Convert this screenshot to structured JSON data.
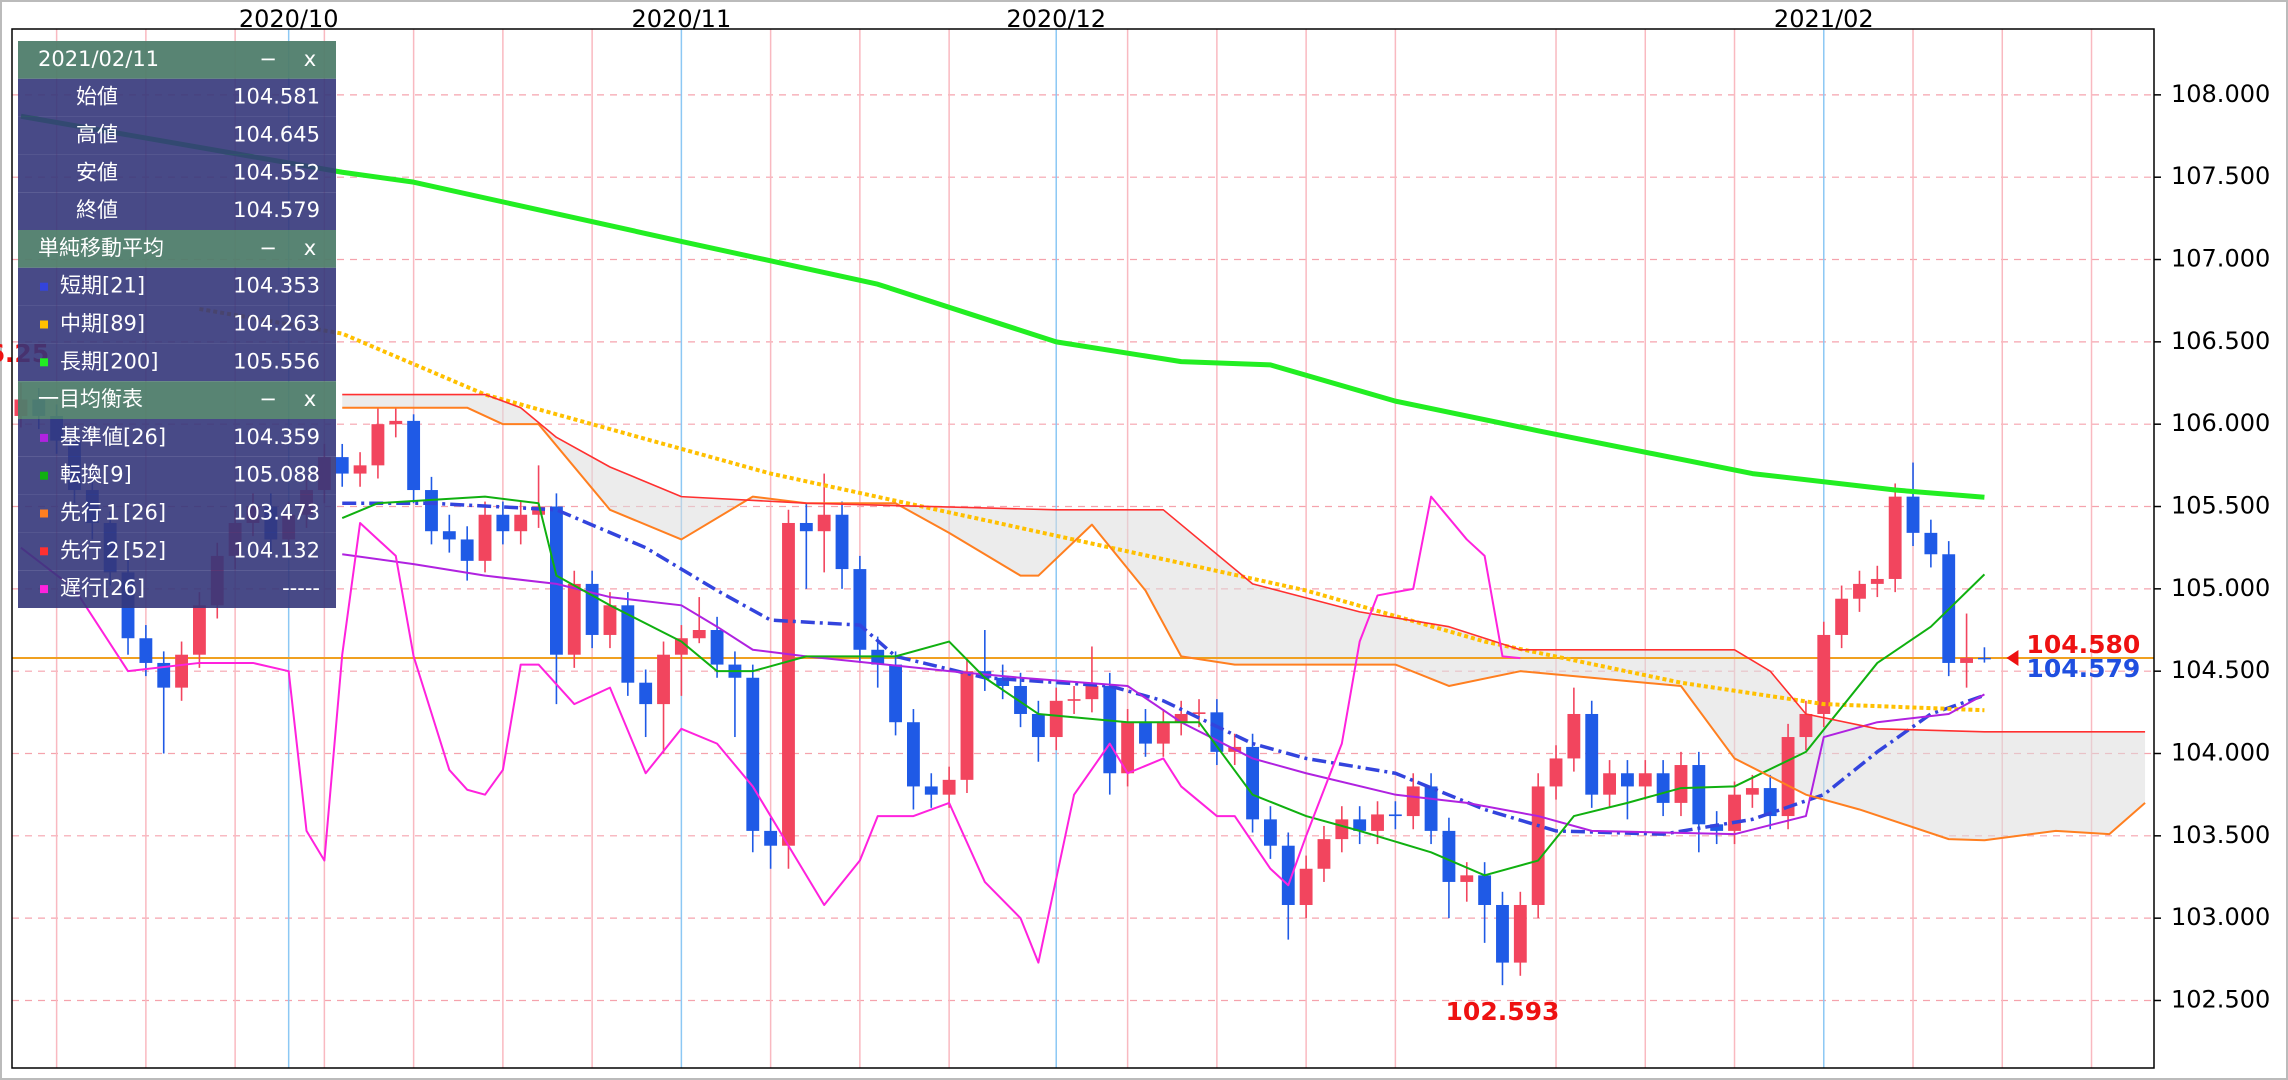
{
  "chart_data": {
    "type": "candlestick",
    "categories": [
      null,
      null,
      null,
      null,
      null,
      null,
      null,
      null,
      null,
      null,
      null,
      null,
      null,
      null,
      null,
      "2020/10",
      null,
      null,
      null,
      null,
      null,
      null,
      null,
      null,
      null,
      null,
      null,
      null,
      null,
      null,
      null,
      null,
      null,
      null,
      null,
      null,
      null,
      "2020/11",
      null,
      null,
      null,
      null,
      null,
      null,
      null,
      null,
      null,
      null,
      null,
      null,
      null,
      null,
      null,
      null,
      null,
      null,
      null,
      null,
      "2020/12",
      null,
      null,
      null,
      null,
      null,
      null,
      null,
      null,
      null,
      null,
      null,
      null,
      null,
      null,
      null,
      null,
      null,
      null,
      null,
      null,
      null,
      null,
      null,
      null,
      null,
      null,
      null,
      null,
      null,
      null,
      null,
      null,
      null,
      null,
      null,
      null,
      null,
      null,
      null,
      null,
      null,
      null,
      "2021/02",
      null,
      null,
      null,
      null,
      null,
      null,
      null,
      null,
      null
    ],
    "open": [
      106.05,
      106.15,
      106.05,
      105.9,
      105.6,
      105.4,
      105.1,
      104.7,
      104.55,
      104.4,
      104.6,
      104.9,
      105.2,
      105.4,
      105.5,
      105.3,
      105.45,
      105.6,
      105.8,
      105.7,
      105.75,
      106.0,
      106.02,
      105.6,
      105.35,
      105.3,
      105.17,
      105.45,
      105.35,
      105.45,
      105.5,
      104.6,
      105.03,
      104.72,
      104.9,
      104.43,
      104.3,
      104.6,
      104.7,
      104.75,
      104.54,
      104.46,
      103.53,
      103.44,
      105.4,
      105.35,
      105.45,
      105.12,
      104.63,
      104.54,
      104.19,
      103.8,
      103.75,
      103.84,
      104.5,
      104.46,
      104.41,
      104.24,
      104.1,
      104.32,
      104.33,
      104.41,
      103.88,
      104.19,
      104.06,
      104.19,
      104.24,
      104.25,
      104.01,
      104.04,
      103.6,
      103.44,
      103.08,
      103.3,
      103.48,
      103.6,
      103.53,
      103.63,
      103.62,
      103.8,
      103.53,
      103.22,
      103.26,
      103.08,
      102.73,
      103.08,
      103.8,
      103.97,
      104.24,
      103.75,
      103.88,
      103.8,
      103.88,
      103.7,
      103.93,
      103.57,
      103.53,
      103.75,
      103.79,
      103.62,
      104.1,
      104.24,
      104.72,
      104.94,
      105.03,
      105.06,
      105.56,
      105.34,
      105.21,
      104.55,
      104.581
    ],
    "high": [
      106.25,
      106.22,
      106.12,
      105.98,
      105.68,
      105.47,
      105.18,
      104.78,
      104.62,
      104.68,
      104.98,
      105.28,
      105.48,
      105.58,
      105.58,
      105.53,
      105.68,
      105.88,
      105.88,
      105.83,
      106.1,
      106.1,
      106.06,
      105.68,
      105.45,
      105.38,
      105.53,
      105.53,
      105.53,
      105.75,
      105.58,
      105.11,
      105.11,
      104.98,
      104.98,
      104.51,
      104.68,
      104.78,
      104.95,
      104.83,
      104.62,
      104.54,
      103.61,
      105.48,
      105.52,
      105.7,
      105.53,
      105.2,
      104.71,
      104.62,
      104.27,
      103.88,
      103.92,
      104.58,
      104.75,
      104.54,
      104.49,
      104.32,
      104.4,
      104.41,
      104.65,
      104.49,
      104.27,
      104.27,
      104.27,
      104.32,
      104.33,
      104.33,
      104.12,
      104.12,
      103.68,
      103.52,
      103.38,
      103.56,
      103.68,
      103.68,
      103.71,
      103.71,
      103.88,
      103.88,
      103.61,
      103.34,
      103.34,
      103.16,
      103.16,
      103.88,
      104.05,
      104.4,
      104.32,
      103.96,
      103.96,
      103.96,
      103.96,
      104.01,
      104.01,
      103.65,
      103.83,
      103.87,
      103.87,
      104.18,
      104.32,
      104.8,
      105.02,
      105.11,
      105.14,
      105.64,
      105.767,
      105.42,
      105.29,
      104.85,
      104.645
    ],
    "low": [
      105.98,
      105.97,
      105.82,
      105.52,
      105.3,
      105.02,
      104.6,
      104.47,
      104.0,
      104.32,
      104.52,
      104.82,
      105.12,
      105.32,
      105.22,
      105.22,
      105.37,
      105.52,
      105.62,
      105.62,
      105.67,
      105.92,
      105.52,
      105.27,
      105.22,
      105.05,
      105.1,
      105.27,
      105.27,
      105.37,
      104.3,
      104.52,
      104.64,
      104.64,
      104.35,
      104.1,
      104.0,
      104.35,
      104.67,
      104.46,
      104.1,
      103.4,
      103.3,
      103.3,
      105.0,
      105.1,
      105.0,
      104.55,
      104.4,
      104.11,
      103.66,
      103.67,
      103.67,
      103.76,
      104.38,
      104.33,
      104.16,
      103.95,
      104.02,
      104.24,
      104.25,
      103.75,
      103.8,
      103.98,
      103.98,
      104.11,
      104.16,
      103.93,
      103.93,
      103.52,
      103.36,
      102.87,
      103.0,
      103.22,
      103.4,
      103.45,
      103.45,
      103.54,
      103.54,
      103.45,
      103.0,
      103.1,
      102.85,
      102.593,
      102.65,
      103.0,
      103.72,
      103.89,
      103.67,
      103.67,
      103.6,
      103.72,
      103.62,
      103.62,
      103.4,
      103.45,
      103.45,
      103.67,
      103.54,
      103.54,
      104.02,
      104.16,
      104.64,
      104.86,
      104.95,
      104.98,
      105.26,
      105.13,
      104.47,
      104.4,
      104.552
    ],
    "close": [
      106.15,
      106.05,
      105.9,
      105.6,
      105.4,
      105.1,
      104.7,
      104.55,
      104.4,
      104.6,
      104.9,
      105.2,
      105.4,
      105.5,
      105.3,
      105.45,
      105.6,
      105.8,
      105.7,
      105.75,
      106.0,
      106.02,
      105.6,
      105.35,
      105.3,
      105.17,
      105.45,
      105.35,
      105.45,
      105.5,
      104.6,
      105.03,
      104.72,
      104.9,
      104.43,
      104.3,
      104.6,
      104.7,
      104.75,
      104.54,
      104.46,
      103.53,
      103.44,
      105.4,
      105.35,
      105.45,
      105.12,
      104.63,
      104.54,
      104.19,
      103.8,
      103.75,
      103.84,
      104.5,
      104.46,
      104.41,
      104.24,
      104.1,
      104.32,
      104.33,
      104.41,
      103.88,
      104.19,
      104.06,
      104.19,
      104.24,
      104.25,
      104.01,
      104.04,
      103.6,
      103.44,
      103.08,
      103.3,
      103.48,
      103.6,
      103.53,
      103.63,
      103.62,
      103.8,
      103.53,
      103.22,
      103.26,
      103.08,
      102.73,
      103.08,
      103.8,
      103.97,
      104.24,
      103.75,
      103.88,
      103.8,
      103.88,
      103.7,
      103.93,
      103.57,
      103.53,
      103.75,
      103.79,
      103.62,
      104.1,
      104.24,
      104.72,
      104.94,
      105.03,
      105.06,
      105.56,
      105.34,
      105.21,
      104.55,
      104.581,
      104.579
    ],
    "up_color": "#f2455e",
    "down_color": "#1f5ae6",
    "series": [
      {
        "name": "短期[21]",
        "group": 0,
        "color": "#3344dd",
        "style": "dash-dot",
        "x": [
          18,
          23,
          30,
          35,
          39,
          42,
          47,
          49,
          54,
          61,
          64,
          69,
          72,
          77,
          82,
          86,
          92,
          97,
          101,
          104,
          107,
          110
        ],
        "values": [
          105.52,
          105.52,
          105.48,
          105.25,
          104.99,
          104.81,
          104.78,
          104.59,
          104.46,
          104.41,
          104.32,
          104.06,
          103.97,
          103.88,
          103.66,
          103.53,
          103.51,
          103.6,
          103.75,
          104.01,
          104.24,
          104.353
        ]
      },
      {
        "name": "中期[89]",
        "group": 0,
        "color": "#ffc000",
        "style": "dotted",
        "x": [
          10,
          18,
          26,
          42,
          56,
          72,
          82,
          93,
          101,
          110
        ],
        "values": [
          106.7,
          106.55,
          106.18,
          105.7,
          105.37,
          104.99,
          104.68,
          104.43,
          104.3,
          104.263
        ]
      },
      {
        "name": "長期[200]",
        "group": 0,
        "color": "#22ee22",
        "style": "thick",
        "x": [
          0,
          18,
          22,
          37,
          48,
          58,
          65,
          70,
          77,
          85,
          97,
          105,
          110
        ],
        "values": [
          107.87,
          107.53,
          107.47,
          107.11,
          106.85,
          106.5,
          106.38,
          106.36,
          106.14,
          105.96,
          105.7,
          105.6,
          105.556
        ]
      },
      {
        "name": "基準値[26]",
        "group": 1,
        "color": "#b022e0",
        "style": "solid",
        "x": [
          18,
          22,
          26,
          30,
          33,
          37,
          39,
          41,
          44,
          52,
          56,
          62,
          65,
          69,
          72,
          77,
          81,
          85,
          88,
          96,
          100,
          101,
          104,
          108,
          110
        ],
        "values": [
          105.21,
          105.15,
          105.08,
          105.03,
          104.95,
          104.9,
          104.77,
          104.63,
          104.59,
          104.5,
          104.46,
          104.41,
          104.19,
          103.97,
          103.88,
          103.75,
          103.7,
          103.62,
          103.53,
          103.51,
          103.62,
          104.1,
          104.19,
          104.24,
          104.359
        ]
      },
      {
        "name": "転換[9]",
        "group": 1,
        "color": "#10b010",
        "style": "solid",
        "x": [
          18,
          20,
          26,
          29,
          30,
          33,
          37,
          39,
          41,
          44,
          49,
          52,
          54,
          57,
          62,
          66,
          69,
          72,
          75,
          79,
          82,
          85,
          87,
          90,
          93,
          96,
          100,
          104,
          107,
          110
        ],
        "values": [
          105.43,
          105.52,
          105.56,
          105.52,
          105.08,
          104.9,
          104.68,
          104.5,
          104.5,
          104.59,
          104.59,
          104.68,
          104.46,
          104.24,
          104.19,
          104.19,
          103.75,
          103.62,
          103.53,
          103.4,
          103.26,
          103.35,
          103.62,
          103.7,
          103.79,
          103.8,
          104.01,
          104.55,
          104.77,
          105.088
        ]
      },
      {
        "name": "先行１[26]",
        "group": 1,
        "color": "#ff7f20",
        "style": "solid",
        "x": [
          18,
          25,
          27,
          29,
          33,
          37,
          41,
          44,
          49,
          52,
          56,
          57,
          60,
          63,
          65,
          68,
          72,
          77,
          80,
          84,
          88,
          93,
          96,
          100,
          103,
          108,
          110,
          114,
          117,
          119
        ],
        "values": [
          106.1,
          106.1,
          106.0,
          106.0,
          105.48,
          105.3,
          105.56,
          105.52,
          105.52,
          105.34,
          105.08,
          105.08,
          105.39,
          104.99,
          104.59,
          104.54,
          104.54,
          104.54,
          104.41,
          104.5,
          104.46,
          104.41,
          103.97,
          103.75,
          103.66,
          103.48,
          103.473,
          103.53,
          103.51,
          103.7
        ]
      },
      {
        "name": "先行２[52]",
        "group": 1,
        "color": "#ff3030",
        "style": "thin",
        "x": [
          18,
          26,
          28,
          30,
          33,
          37,
          44,
          58,
          64,
          69,
          75,
          80,
          84,
          96,
          98,
          100,
          104,
          110,
          119
        ],
        "values": [
          106.18,
          106.18,
          106.1,
          105.92,
          105.74,
          105.56,
          105.52,
          105.48,
          105.48,
          105.03,
          104.86,
          104.77,
          104.63,
          104.63,
          104.5,
          104.24,
          104.15,
          104.132,
          104.132
        ]
      },
      {
        "name": "遅行[26]",
        "group": 1,
        "color": "#ff22dd",
        "style": "solid",
        "panel_value": "-----",
        "x": [
          0,
          3,
          6,
          10,
          13,
          15,
          16,
          17,
          18,
          19,
          21,
          22,
          24,
          25,
          26,
          27,
          28,
          29,
          31,
          33,
          35,
          37,
          39,
          41,
          43,
          45,
          47,
          48,
          50,
          52,
          54,
          56,
          57,
          59,
          61,
          62,
          64,
          65,
          67,
          68,
          70,
          71,
          72,
          74,
          75,
          76,
          78,
          79,
          81,
          82,
          83,
          84
        ],
        "values": [
          105.25,
          105.0,
          104.5,
          104.55,
          104.55,
          104.5,
          103.53,
          103.35,
          104.6,
          105.4,
          105.2,
          104.59,
          103.9,
          103.78,
          103.75,
          103.9,
          104.54,
          104.54,
          104.3,
          104.4,
          103.88,
          104.15,
          104.06,
          103.8,
          103.44,
          103.08,
          103.35,
          103.62,
          103.62,
          103.7,
          103.22,
          103.0,
          102.73,
          103.75,
          104.06,
          103.88,
          103.97,
          103.8,
          103.62,
          103.62,
          103.3,
          103.2,
          103.5,
          104.06,
          104.68,
          104.96,
          105.0,
          105.56,
          105.3,
          105.2,
          104.59,
          104.579
        ]
      }
    ],
    "cloud": true,
    "current_prices": [
      {
        "value": 104.58,
        "label": "104.580",
        "color": "#ee1111"
      },
      {
        "value": 104.579,
        "label": "104.579",
        "color": "#1f4fe0"
      }
    ],
    "xlim": [
      -0.5,
      119.5
    ],
    "xticks": [
      2,
      7,
      12,
      17,
      22,
      27,
      32,
      42,
      47,
      52,
      62,
      67,
      72,
      77,
      86,
      91,
      96,
      106,
      111,
      116
    ],
    "ylim": [
      102.09,
      108.4
    ],
    "yticks": [
      {
        "value": 102.5,
        "label": "102.500"
      },
      {
        "value": 103,
        "label": "103.000"
      },
      {
        "value": 103.5,
        "label": "103.500"
      },
      {
        "value": 104,
        "label": "104.000"
      },
      {
        "value": 104.5,
        "label": "104.500"
      },
      {
        "value": 105,
        "label": "105.000"
      },
      {
        "value": 105.5,
        "label": "105.500"
      },
      {
        "value": 106,
        "label": "106.000"
      },
      {
        "value": 106.5,
        "label": "106.500"
      },
      {
        "value": 107,
        "label": "107.000"
      },
      {
        "value": 107.5,
        "label": "107.500"
      },
      {
        "value": 108,
        "label": "108.000"
      }
    ],
    "grid": true
  },
  "panel": {
    "date": "2021/02/11",
    "controls": [
      "−",
      "x"
    ],
    "ohlc_labels": [
      "始値",
      "高値",
      "安値",
      "終値"
    ],
    "groups": [
      "単純移動平均",
      "一目均衡表"
    ]
  }
}
